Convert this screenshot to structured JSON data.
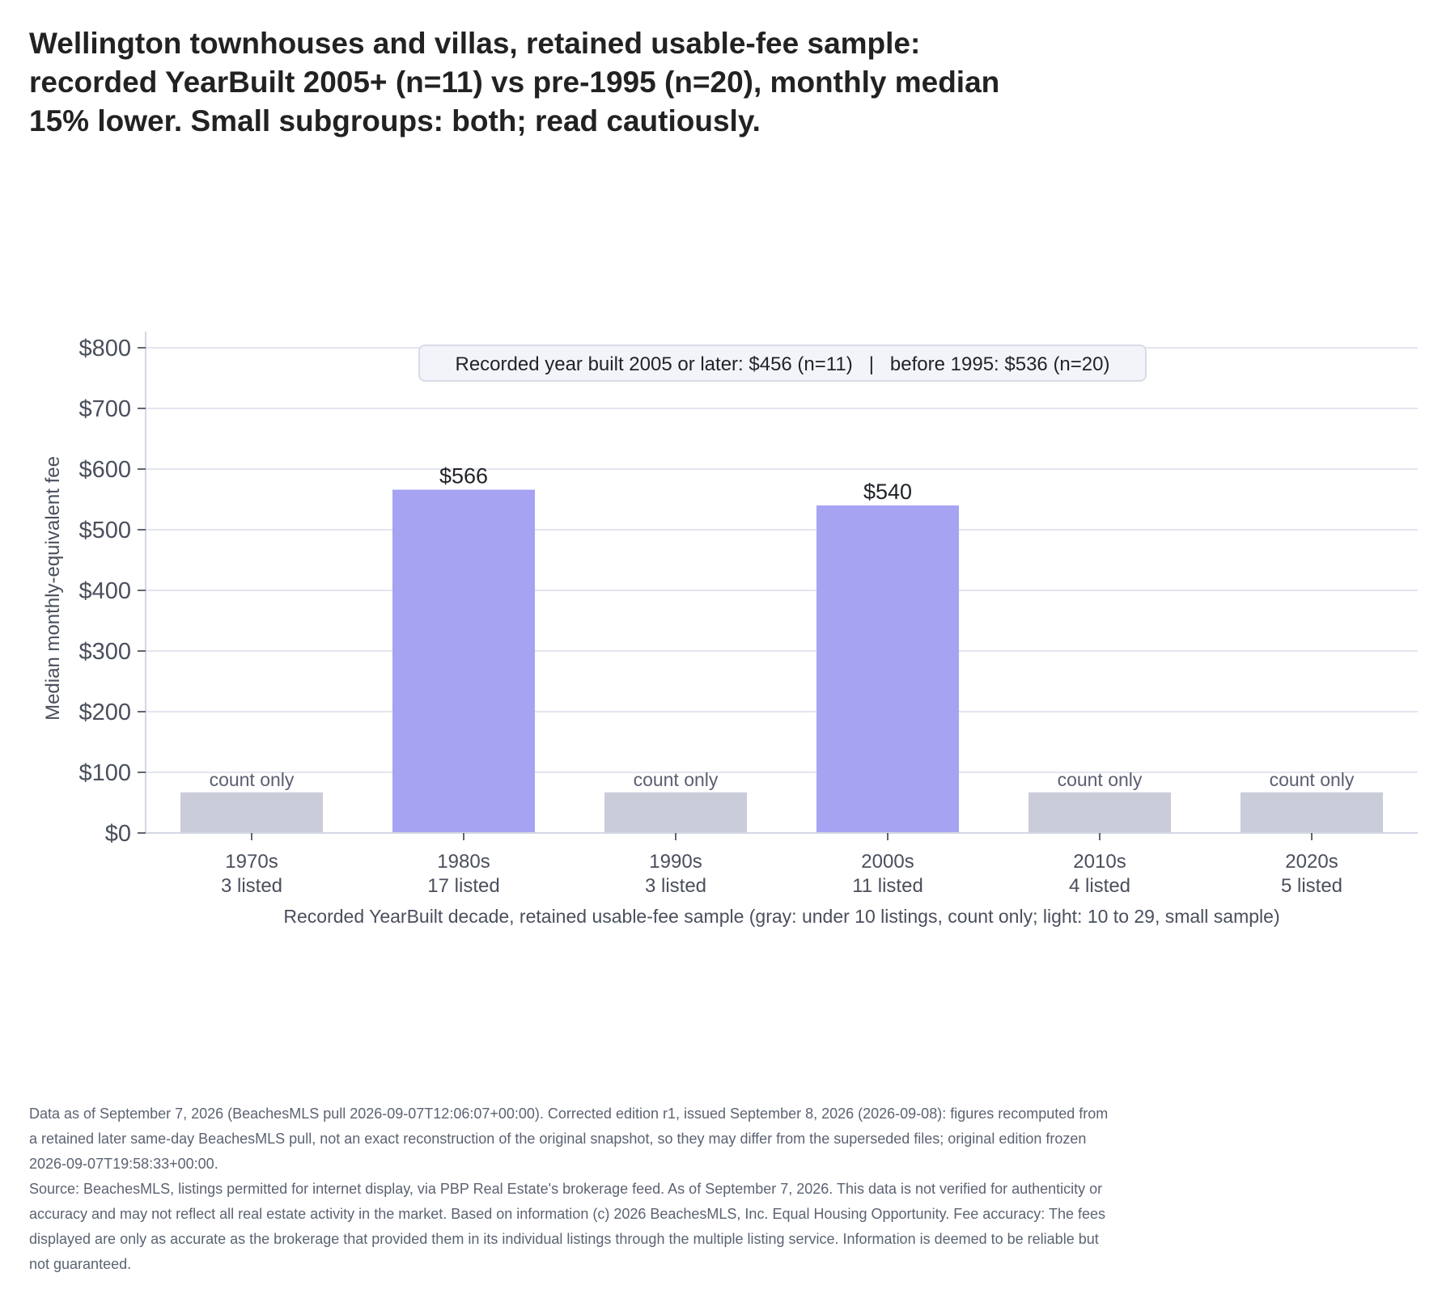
{
  "title_lines": [
    "Wellington townhouses and villas, retained usable-fee sample:",
    "recorded YearBuilt 2005+ (n=11) vs pre-1995 (n=20), monthly median",
    "15% lower. Small subgroups: both; read cautiously."
  ],
  "chart_data": {
    "type": "bar",
    "ylabel": "Median monthly-equivalent fee",
    "xlabel": "Recorded YearBuilt decade, retained usable-fee sample (gray: under 10 listings, count only; light: 10 to 29, small sample)",
    "ylim": [
      0,
      820
    ],
    "yticks": [
      0,
      100,
      200,
      300,
      400,
      500,
      600,
      700,
      800
    ],
    "ytick_labels": [
      "$0",
      "$100",
      "$200",
      "$300",
      "$400",
      "$500",
      "$600",
      "$700",
      "$800"
    ],
    "grid": "horizontal",
    "categories": [
      "1970s",
      "1980s",
      "1990s",
      "2000s",
      "2010s",
      "2020s"
    ],
    "counts_text": [
      "3 listed",
      "17 listed",
      "3 listed",
      "11 listed",
      "4 listed",
      "5 listed"
    ],
    "values": [
      null,
      566,
      null,
      540,
      null,
      null
    ],
    "value_labels": [
      "count only",
      "$566",
      "count only",
      "$540",
      "count only",
      "count only"
    ],
    "count_only": [
      true,
      false,
      true,
      false,
      true,
      true
    ],
    "count_only_placeholder_value": 67,
    "colors": {
      "median_bar": "#a6a3f3",
      "count_only_bar": "#caccda",
      "grid": "#e3e5f0",
      "axis": "#d4d7e3",
      "tick_text": "#4a4f5c",
      "count_only_label": "#5b6072",
      "annotation_bg": "#f3f4f9",
      "annotation_border": "#d8dbe8"
    },
    "annotation": "Recorded year built 2005 or later: $456 (n=11)   |   before 1995: $536 (n=20)"
  },
  "footer": {
    "note": "Data as of September 7, 2026 (BeachesMLS pull 2026-09-07T12:06:07+00:00). Corrected edition r1, issued September 8, 2026 (2026-09-08): figures recomputed from a retained later same-day BeachesMLS pull, not an exact reconstruction of the original snapshot, so they may differ from the superseded files; original edition frozen 2026-09-07T19:58:33+00:00.",
    "source": "Source: BeachesMLS, listings permitted for internet display, via PBP Real Estate's brokerage feed. As of September 7, 2026. This data is not verified for authenticity or accuracy and may not reflect all real estate activity in the market. Based on information (c) 2026 BeachesMLS, Inc. Equal Housing Opportunity. Fee accuracy: The fees displayed are only as accurate as the brokerage that provided them in its individual listings through the multiple listing service. Information is deemed to be reliable but not guaranteed."
  }
}
